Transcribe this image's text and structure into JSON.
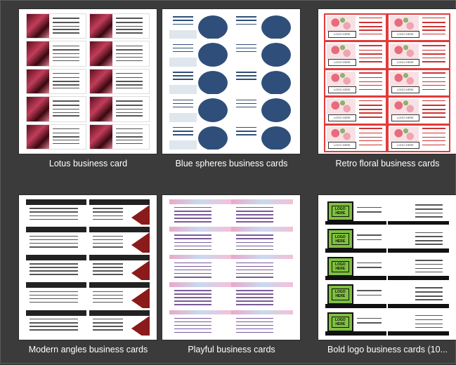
{
  "templates": [
    {
      "caption": "Lotus business card"
    },
    {
      "caption": "Blue spheres business cards"
    },
    {
      "caption": "Retro floral business cards"
    },
    {
      "caption": "Modern angles business cards"
    },
    {
      "caption": "Playful business cards"
    },
    {
      "caption": "Bold logo business cards (10..."
    }
  ],
  "card_text": {
    "your_name": "YOUR NAME",
    "logo_here": "LOGO HERE"
  },
  "colors": {
    "background": "#3b3b3b",
    "retro_border": "#e23b3b",
    "sphere_blue": "#2f4f7a",
    "bold_green": "#7fc03e",
    "modern_red": "#8b1a1a"
  }
}
